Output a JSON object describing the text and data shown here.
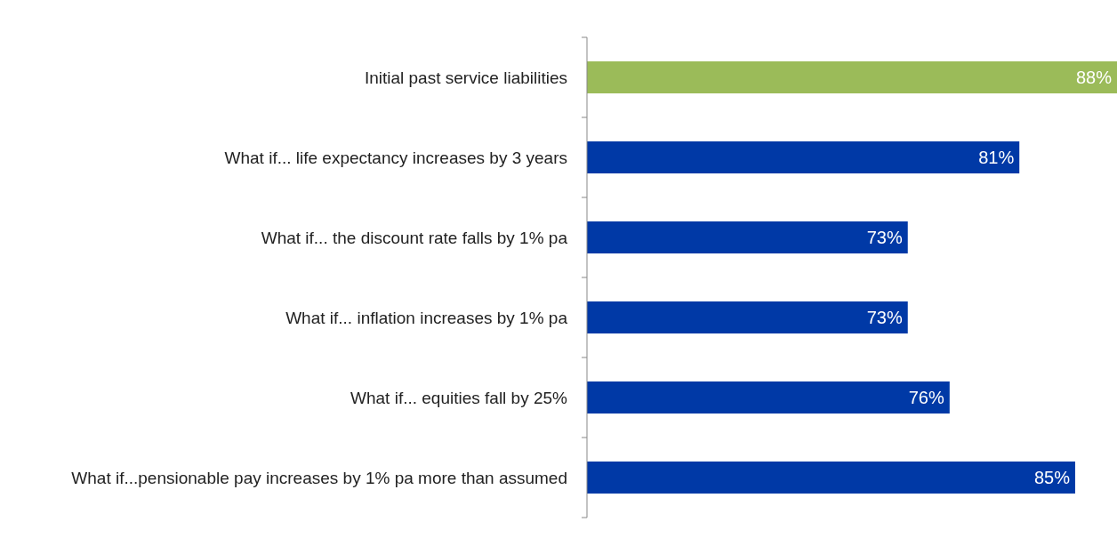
{
  "chart_data": {
    "type": "bar",
    "orientation": "horizontal",
    "categories": [
      "Initial past service liabilities",
      "What if... life expectancy increases by 3 years",
      "What if... the discount rate falls by 1% pa",
      "What if... inflation increases by 1% pa",
      "What if... equities fall by 25%",
      "What if...pensionable pay increases by 1% pa more than assumed"
    ],
    "values": [
      88,
      81,
      73,
      73,
      76,
      85
    ],
    "value_labels": [
      "88%",
      "81%",
      "73%",
      "73%",
      "76%",
      "85%"
    ],
    "colors": [
      "#9bbb59",
      "#0039a6",
      "#0039a6",
      "#0039a6",
      "#0039a6",
      "#0039a6"
    ],
    "xlim": [
      50,
      88
    ]
  }
}
